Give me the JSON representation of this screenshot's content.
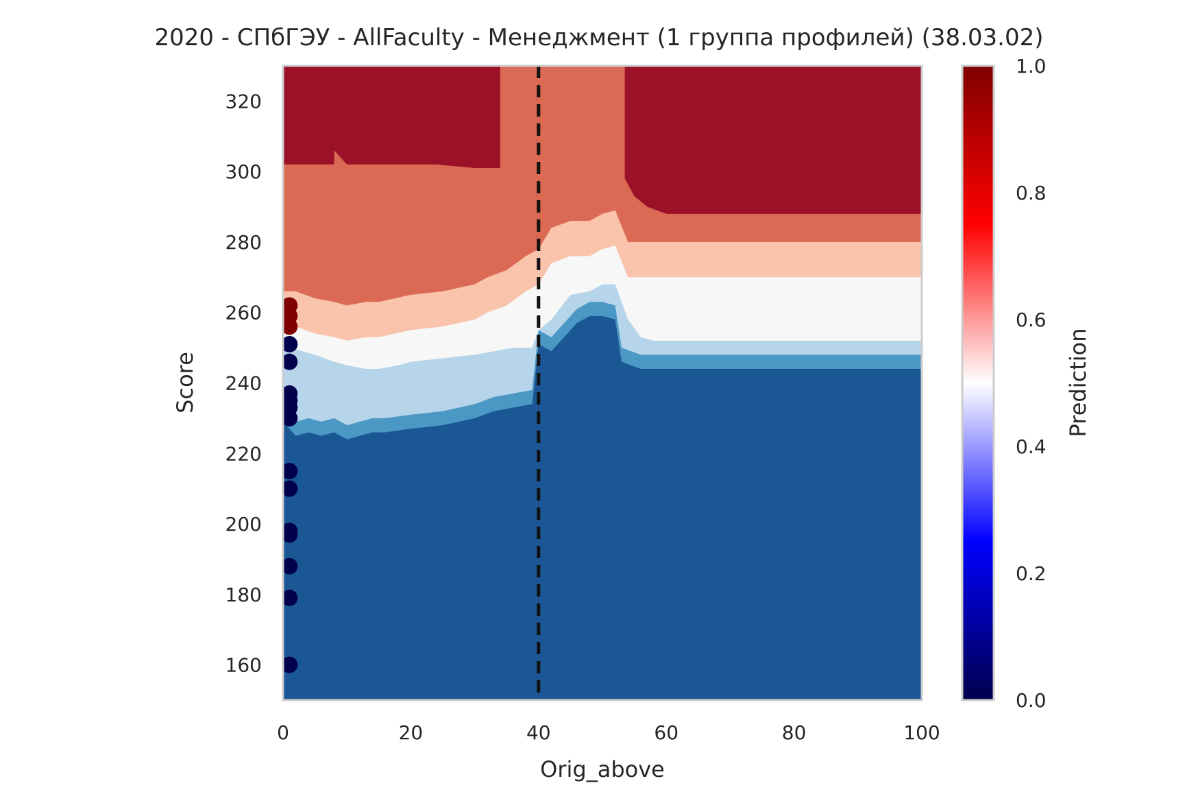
{
  "chart_data": {
    "type": "heatmap",
    "title": "2020 - СПбГЭУ - AllFaculty - Менеджмент (1 группа профилей) (38.03.02)",
    "xlabel": "Orig_above",
    "ylabel": "Score",
    "xlim": [
      0,
      100
    ],
    "ylim": [
      150,
      330
    ],
    "x_ticks": [
      "0",
      "20",
      "40",
      "60",
      "80",
      "100"
    ],
    "y_ticks": [
      "160",
      "180",
      "200",
      "220",
      "240",
      "260",
      "280",
      "300",
      "320"
    ],
    "grid": false,
    "colorbar": {
      "label": "Prediction",
      "colormap": "seismic",
      "range": [
        0,
        1
      ],
      "ticks": [
        "0.0",
        "0.2",
        "0.4",
        "0.6",
        "0.8",
        "1.0"
      ]
    },
    "contour_levels": [
      {
        "level": 0.875,
        "color": "#9b1127",
        "boundary": [
          [
            0,
            302
          ],
          [
            5,
            302
          ],
          [
            8,
            302
          ],
          [
            8,
            330
          ],
          [
            0,
            330
          ]
        ]
      },
      {
        "level": 0.875,
        "color": "#9b1127",
        "boundary": [
          [
            8,
            306
          ],
          [
            10,
            302
          ],
          [
            20,
            302
          ],
          [
            24,
            302
          ],
          [
            30,
            301
          ],
          [
            34,
            301
          ],
          [
            34,
            330
          ],
          [
            8,
            330
          ]
        ]
      },
      {
        "level": 0.875,
        "color": "#9b1127",
        "boundary": [
          [
            53.5,
            330
          ],
          [
            53.5,
            298
          ],
          [
            55,
            293
          ],
          [
            57,
            290
          ],
          [
            60,
            288
          ],
          [
            100,
            288
          ],
          [
            100,
            330
          ]
        ]
      },
      {
        "level": 0.5,
        "color": "#f7f7f7",
        "boundary_lower_y": [
          [
            0,
            256
          ],
          [
            2,
            256
          ],
          [
            5,
            254
          ],
          [
            8,
            253
          ],
          [
            10,
            252
          ],
          [
            13,
            253
          ],
          [
            15,
            253
          ],
          [
            20,
            255
          ],
          [
            25,
            256
          ],
          [
            30,
            258
          ],
          [
            32,
            260
          ],
          [
            35,
            262
          ],
          [
            38,
            266
          ],
          [
            40,
            268
          ],
          [
            42,
            274
          ],
          [
            45,
            276
          ],
          [
            48,
            276
          ],
          [
            50,
            278
          ],
          [
            52,
            279
          ],
          [
            54,
            270
          ],
          [
            60,
            270
          ],
          [
            100,
            270
          ]
        ]
      },
      {
        "level": 0.375,
        "color": "#b7d5ea",
        "boundary_lower_y": [
          [
            0,
            251
          ],
          [
            3,
            249
          ],
          [
            5,
            248
          ],
          [
            8,
            246
          ],
          [
            10,
            245
          ],
          [
            13,
            244
          ],
          [
            15,
            244
          ],
          [
            18,
            245
          ],
          [
            20,
            246
          ],
          [
            25,
            247
          ],
          [
            30,
            248
          ],
          [
            33,
            249
          ],
          [
            36,
            250
          ],
          [
            39,
            250
          ],
          [
            40,
            255
          ],
          [
            42,
            258
          ],
          [
            45,
            265
          ],
          [
            48,
            266
          ],
          [
            50,
            268
          ],
          [
            52,
            268
          ],
          [
            54,
            258
          ],
          [
            56,
            253
          ],
          [
            58,
            252
          ],
          [
            100,
            252
          ]
        ]
      },
      {
        "level": 0.25,
        "color": "#4b98c5",
        "boundary_lower_y": [
          [
            0,
            233
          ],
          [
            2,
            229
          ],
          [
            4,
            230
          ],
          [
            6,
            229
          ],
          [
            8,
            230
          ],
          [
            10,
            228
          ],
          [
            12,
            229
          ],
          [
            14,
            230
          ],
          [
            16,
            230
          ],
          [
            20,
            231
          ],
          [
            25,
            232
          ],
          [
            30,
            234
          ],
          [
            33,
            236
          ],
          [
            36,
            237
          ],
          [
            39,
            238
          ],
          [
            40,
            255
          ],
          [
            42,
            253
          ],
          [
            44,
            257
          ],
          [
            46,
            261
          ],
          [
            48,
            263
          ],
          [
            50,
            263
          ],
          [
            52,
            262
          ],
          [
            53,
            250
          ],
          [
            56,
            248
          ],
          [
            58,
            248
          ],
          [
            100,
            248
          ]
        ]
      },
      {
        "level": 0.0,
        "color": "#1b5795",
        "boundary": "remainder"
      }
    ],
    "scatter": {
      "x_value": 1,
      "points": [
        {
          "y": 262,
          "prediction": 1
        },
        {
          "y": 259,
          "prediction": 1
        },
        {
          "y": 256,
          "prediction": 1
        },
        {
          "y": 251,
          "prediction": 0
        },
        {
          "y": 246,
          "prediction": 0
        },
        {
          "y": 237,
          "prediction": 0
        },
        {
          "y": 235,
          "prediction": 0
        },
        {
          "y": 233,
          "prediction": 0
        },
        {
          "y": 230,
          "prediction": 0
        },
        {
          "y": 215,
          "prediction": 0
        },
        {
          "y": 210,
          "prediction": 0
        },
        {
          "y": 198,
          "prediction": 0
        },
        {
          "y": 197,
          "prediction": 0
        },
        {
          "y": 188,
          "prediction": 0
        },
        {
          "y": 179,
          "prediction": 0
        },
        {
          "y": 160,
          "prediction": 0
        }
      ]
    },
    "reference_line": {
      "x": 40,
      "style": "dashed",
      "color": "#111111"
    }
  }
}
